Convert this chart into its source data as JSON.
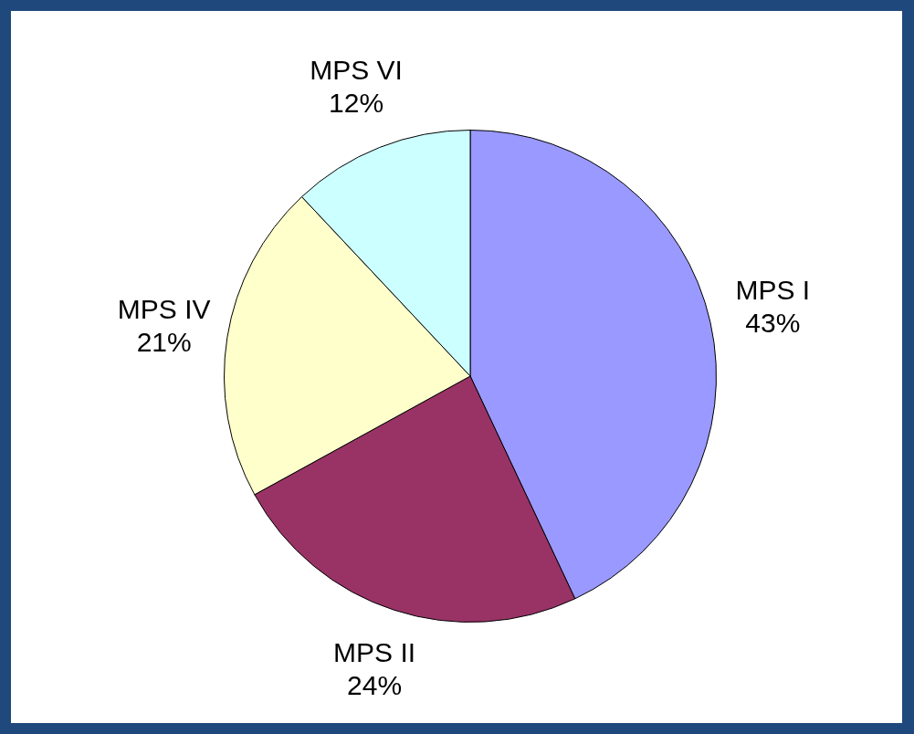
{
  "chart_data": {
    "type": "pie",
    "categories": [
      "MPS I",
      "MPS II",
      "MPS IV",
      "MPS VI"
    ],
    "values": [
      43,
      24,
      21,
      12
    ],
    "value_labels": [
      "43%",
      "24%",
      "21%",
      "12%"
    ],
    "colors": [
      "#9999ff",
      "#993366",
      "#ffffcc",
      "#ccffff"
    ],
    "legend": false
  }
}
